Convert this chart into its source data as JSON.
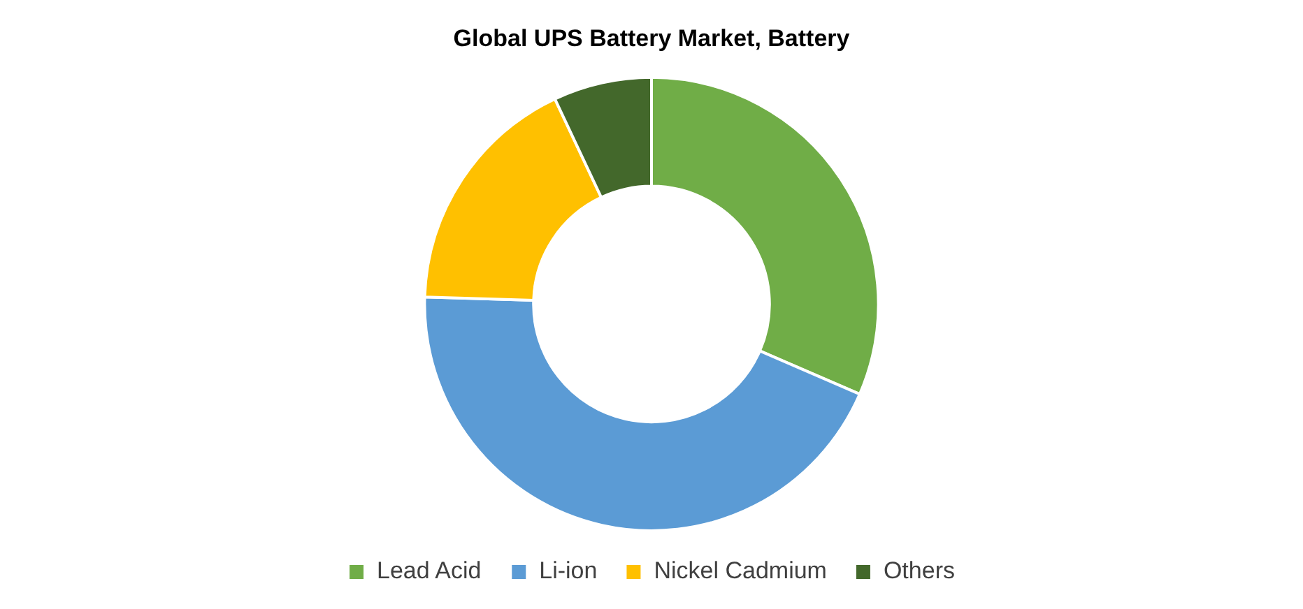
{
  "chart_data": {
    "type": "donut",
    "title": "Global UPS Battery Market, Battery",
    "categories": [
      "Lead Acid",
      "Li-ion",
      "Nickel Cadmium",
      "Others"
    ],
    "values": [
      31.5,
      44,
      17.5,
      7
    ],
    "colors": [
      "#70ad47",
      "#5b9bd5",
      "#ffc000",
      "#43682b"
    ],
    "legend": "bottom"
  }
}
